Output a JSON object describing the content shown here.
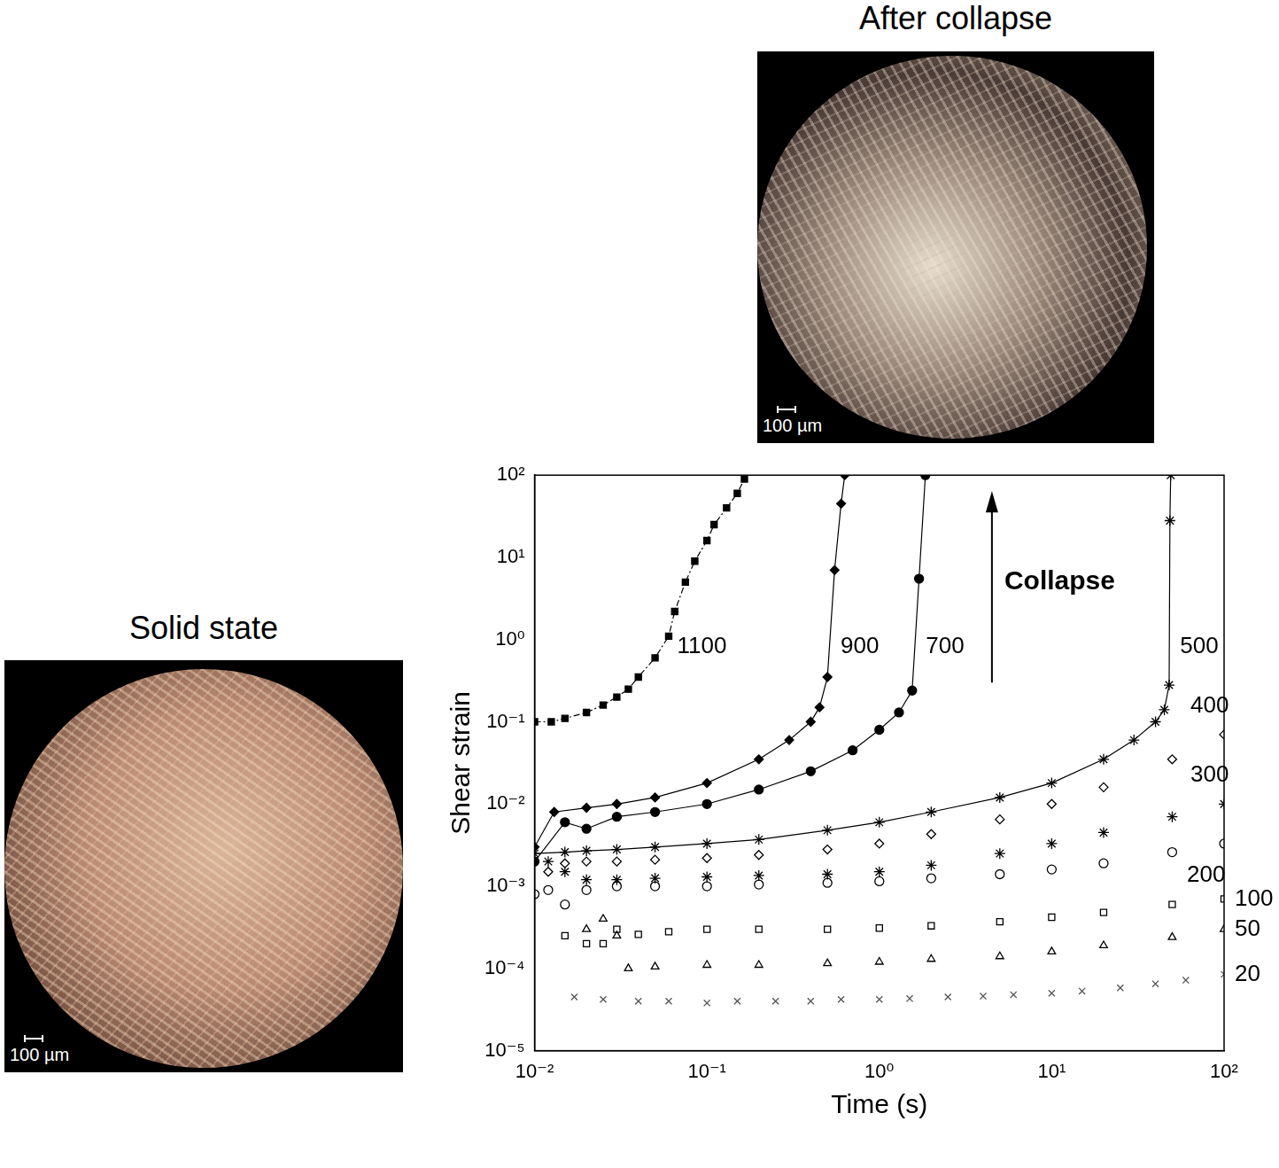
{
  "chart_data": {
    "type": "scatter",
    "x_label": "Time (s)",
    "y_label": "Shear strain",
    "log": true,
    "grid": false,
    "xlim": [
      0.01,
      100
    ],
    "ylim": [
      1e-05,
      100
    ],
    "xticks": [
      {
        "value": 0.01,
        "label": "10⁻²"
      },
      {
        "value": 0.1,
        "label": "10⁻¹"
      },
      {
        "value": 1,
        "label": "10⁰"
      },
      {
        "value": 10,
        "label": "10¹"
      },
      {
        "value": 100,
        "label": "10²"
      }
    ],
    "yticks": [
      {
        "value": 1e-05,
        "label": "10⁻⁵"
      },
      {
        "value": 0.0001,
        "label": "10⁻⁴"
      },
      {
        "value": 0.001,
        "label": "10⁻³"
      },
      {
        "value": 0.01,
        "label": "10⁻²"
      },
      {
        "value": 0.1,
        "label": "10⁻¹"
      },
      {
        "value": 1,
        "label": "10⁰"
      },
      {
        "value": 10,
        "label": "10¹"
      },
      {
        "value": 100,
        "label": "10²"
      }
    ],
    "annotations": [
      {
        "text": "Collapse",
        "x": 4.5,
        "y": 0.3,
        "y_end": 50
      }
    ],
    "series": [
      {
        "name": "20",
        "color": "#555555",
        "marker": "cross",
        "x": [
          0.017,
          0.025,
          0.04,
          0.06,
          0.1,
          0.15,
          0.25,
          0.4,
          0.6,
          1,
          1.5,
          2.5,
          4,
          6,
          10,
          15,
          25,
          40,
          60,
          100
        ],
        "values": [
          4.5e-05,
          4.2e-05,
          4e-05,
          4e-05,
          3.8e-05,
          4e-05,
          4e-05,
          4e-05,
          4.2e-05,
          4.2e-05,
          4.3e-05,
          4.5e-05,
          4.6e-05,
          4.8e-05,
          5e-05,
          5.3e-05,
          5.8e-05,
          6.5e-05,
          7.2e-05,
          8.5e-05
        ]
      },
      {
        "name": "50",
        "color": "#000000",
        "marker": "triangle-open",
        "x": [
          0.02,
          0.025,
          0.03,
          0.035,
          0.05,
          0.1,
          0.2,
          0.5,
          1,
          2,
          5,
          10,
          20,
          50,
          100
        ],
        "values": [
          0.0003,
          0.0004,
          0.00025,
          0.0001,
          0.000105,
          0.00011,
          0.00011,
          0.000115,
          0.00012,
          0.00013,
          0.00014,
          0.00016,
          0.00019,
          0.00024,
          0.0003
        ]
      },
      {
        "name": "100",
        "color": "#000000",
        "marker": "square-cross",
        "x": [
          0.015,
          0.02,
          0.025,
          0.03,
          0.04,
          0.06,
          0.1,
          0.2,
          0.5,
          1,
          2,
          5,
          10,
          20,
          50,
          100
        ],
        "values": [
          0.00025,
          0.0002,
          0.0002,
          0.0003,
          0.00026,
          0.00028,
          0.0003,
          0.0003,
          0.0003,
          0.00031,
          0.00033,
          0.00037,
          0.00042,
          0.00048,
          0.0006,
          0.0007
        ]
      },
      {
        "name": "200",
        "color": "#000000",
        "marker": "circle-open",
        "x": [
          0.01,
          0.012,
          0.015,
          0.02,
          0.03,
          0.05,
          0.1,
          0.2,
          0.5,
          1,
          2,
          5,
          10,
          20,
          50,
          100
        ],
        "values": [
          0.0008,
          0.0009,
          0.0006,
          0.0009,
          0.001,
          0.001,
          0.001,
          0.00105,
          0.0011,
          0.00115,
          0.00125,
          0.0014,
          0.0016,
          0.0019,
          0.0026,
          0.0033
        ]
      },
      {
        "name": "300",
        "color": "#000000",
        "marker": "star",
        "x": [
          0.012,
          0.015,
          0.02,
          0.03,
          0.05,
          0.1,
          0.2,
          0.5,
          1,
          2,
          5,
          10,
          20,
          50,
          100
        ],
        "values": [
          0.002,
          0.0015,
          0.0012,
          0.0012,
          0.00125,
          0.0013,
          0.00135,
          0.0014,
          0.0015,
          0.0018,
          0.0025,
          0.0033,
          0.0045,
          0.007,
          0.01
        ]
      },
      {
        "name": "400",
        "color": "#000000",
        "marker": "diamond-open",
        "x": [
          0.012,
          0.015,
          0.02,
          0.03,
          0.05,
          0.1,
          0.2,
          0.5,
          1,
          2,
          5,
          10,
          20,
          50,
          100
        ],
        "values": [
          0.0015,
          0.0019,
          0.002,
          0.002,
          0.0021,
          0.0022,
          0.0024,
          0.0028,
          0.0033,
          0.0043,
          0.0065,
          0.01,
          0.016,
          0.035,
          0.07
        ]
      },
      {
        "name": "500",
        "color": "#000000",
        "marker": "star",
        "line_style": "solid",
        "x": [
          0.01,
          0.015,
          0.02,
          0.03,
          0.05,
          0.1,
          0.2,
          0.5,
          1,
          2,
          5,
          10,
          20,
          30,
          40,
          45,
          48,
          48.5,
          49
        ],
        "values": [
          0.0025,
          0.0026,
          0.0027,
          0.0028,
          0.003,
          0.0033,
          0.0037,
          0.0048,
          0.006,
          0.008,
          0.012,
          0.018,
          0.035,
          0.06,
          0.1,
          0.14,
          0.28,
          28,
          100
        ]
      },
      {
        "name": "700",
        "color": "#000000",
        "marker": "circle",
        "line_style": "solid",
        "x": [
          0.01,
          0.015,
          0.02,
          0.03,
          0.05,
          0.1,
          0.2,
          0.4,
          0.7,
          1,
          1.3,
          1.55,
          1.7,
          1.85
        ],
        "values": [
          0.002,
          0.006,
          0.005,
          0.007,
          0.008,
          0.01,
          0.015,
          0.025,
          0.045,
          0.08,
          0.13,
          0.24,
          5.5,
          100
        ]
      },
      {
        "name": "900",
        "color": "#000000",
        "marker": "diamond",
        "line_style": "solid",
        "x": [
          0.01,
          0.013,
          0.02,
          0.03,
          0.05,
          0.1,
          0.2,
          0.3,
          0.4,
          0.45,
          0.5,
          0.55,
          0.6,
          0.63
        ],
        "values": [
          0.003,
          0.008,
          0.009,
          0.01,
          0.012,
          0.018,
          0.035,
          0.06,
          0.1,
          0.15,
          0.35,
          7,
          45,
          100
        ]
      },
      {
        "name": "1100",
        "color": "#000000",
        "marker": "square",
        "line_style": "dashdot",
        "x": [
          0.01,
          0.0125,
          0.015,
          0.02,
          0.025,
          0.03,
          0.035,
          0.04,
          0.05,
          0.06,
          0.065,
          0.075,
          0.085,
          0.1,
          0.11,
          0.13,
          0.15,
          0.165
        ],
        "values": [
          0.1,
          0.1,
          0.11,
          0.13,
          0.16,
          0.2,
          0.25,
          0.35,
          0.6,
          1.1,
          2.2,
          5,
          9,
          16,
          25,
          40,
          60,
          90
        ]
      }
    ]
  },
  "images": [
    {
      "title": "Solid state",
      "scale_bar": "100 µm"
    },
    {
      "title": "After collapse",
      "scale_bar": "100 µm"
    }
  ]
}
